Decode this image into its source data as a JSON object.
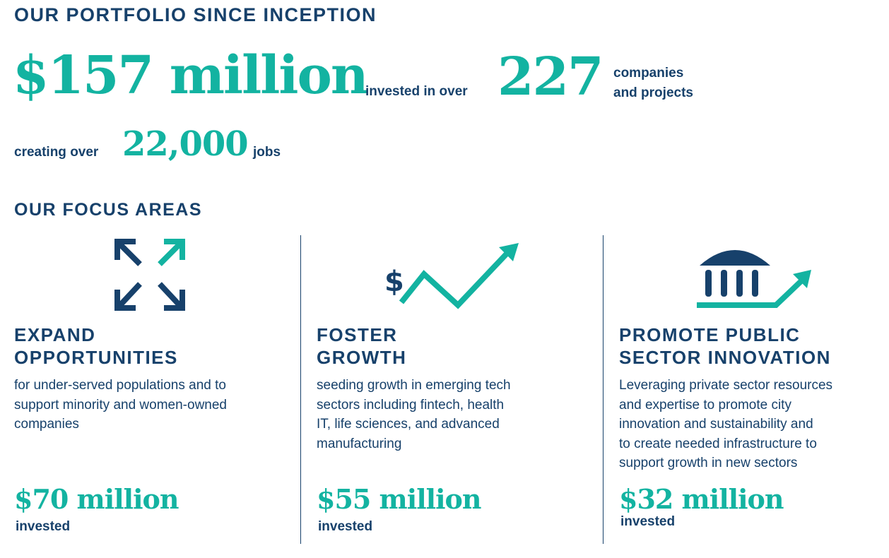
{
  "portfolio": {
    "title": "OUR PORTFOLIO SINCE INCEPTION",
    "total_amount": "$157 million",
    "invested_text": "invested in over",
    "company_count": "227",
    "companies_line1": "companies",
    "companies_line2": "and projects",
    "creating_text": "creating over",
    "jobs_count": "22,000",
    "jobs_text": "jobs"
  },
  "focus": {
    "title": "OUR FOCUS AREAS",
    "areas": [
      {
        "icon": "expand-arrows-icon",
        "title_line1": "EXPAND",
        "title_line2": "OPPORTUNITIES",
        "desc": [
          "for under-served populations and to",
          "support minority and women-owned",
          "companies"
        ],
        "amount": "$70 million",
        "invested": "invested"
      },
      {
        "icon": "growth-chart-icon",
        "title_line1": "FOSTER",
        "title_line2": "GROWTH",
        "desc": [
          "seeding growth in emerging tech",
          "sectors including fintech, health",
          "IT, life sciences, and advanced",
          "manufacturing"
        ],
        "amount": "$55 million",
        "invested": "invested"
      },
      {
        "icon": "public-building-icon",
        "title_line1": "PROMOTE PUBLIC",
        "title_line2": "SECTOR INNOVATION",
        "desc": [
          "Leveraging private sector resources",
          "and expertise to promote city",
          "innovation and sustainability and",
          "to create needed infrastructure to",
          "support growth in new sectors"
        ],
        "amount": "$32 million",
        "invested": "invested"
      }
    ]
  },
  "colors": {
    "navy": "#17416b",
    "teal": "#13b3a1"
  }
}
